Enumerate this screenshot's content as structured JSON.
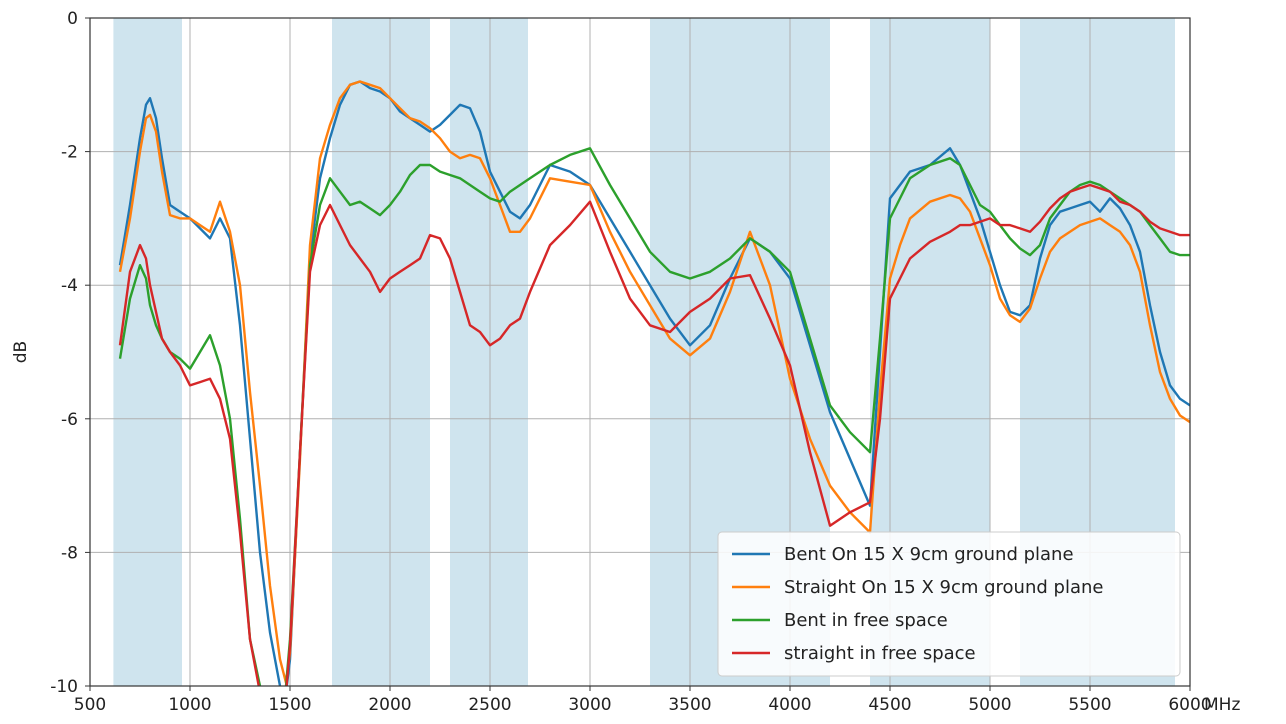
{
  "chart_data": {
    "type": "line",
    "title": "",
    "xlabel": "",
    "ylabel": "dB",
    "x_unit": "MHz",
    "xlim": [
      500,
      6000
    ],
    "ylim": [
      -10,
      0
    ],
    "x_ticks": [
      500,
      1000,
      1500,
      2000,
      2500,
      3000,
      3500,
      4000,
      4500,
      5000,
      5500,
      6000
    ],
    "x_tick_labels": [
      "500",
      "1000",
      "1500",
      "2000",
      "2500",
      "3000",
      "3500",
      "4000",
      "4500",
      "5000",
      "5500",
      "6000"
    ],
    "y_ticks": [
      0,
      -2,
      -4,
      -6,
      -8,
      -10
    ],
    "y_tick_labels": [
      "0",
      "-2",
      "-4",
      "-6",
      "-8",
      "-10"
    ],
    "grid": true,
    "legend_position": "bottom-right",
    "shaded_bands": [
      [
        617,
        960
      ],
      [
        1710,
        2200
      ],
      [
        2300,
        2690
      ],
      [
        3300,
        4200
      ],
      [
        4400,
        5000
      ],
      [
        5150,
        5925
      ]
    ],
    "band_color": "#cfe4ee",
    "series": [
      {
        "name": "Bent On 15 X 9cm ground plane",
        "color": "#1f77b4",
        "x": [
          650,
          700,
          750,
          780,
          800,
          830,
          860,
          900,
          950,
          1000,
          1050,
          1100,
          1150,
          1200,
          1250,
          1300,
          1350,
          1400,
          1450,
          1480,
          1500,
          1550,
          1600,
          1650,
          1700,
          1750,
          1800,
          1850,
          1900,
          1950,
          2000,
          2050,
          2100,
          2150,
          2200,
          2250,
          2300,
          2350,
          2400,
          2450,
          2500,
          2550,
          2600,
          2650,
          2700,
          2800,
          2900,
          3000,
          3100,
          3200,
          3300,
          3400,
          3500,
          3600,
          3700,
          3800,
          3900,
          4000,
          4100,
          4200,
          4300,
          4400,
          4450,
          4500,
          4550,
          4600,
          4700,
          4800,
          4850,
          4900,
          4950,
          5000,
          5050,
          5100,
          5150,
          5200,
          5250,
          5300,
          5350,
          5400,
          5450,
          5500,
          5550,
          5600,
          5650,
          5700,
          5750,
          5800,
          5850,
          5900,
          5950,
          6000
        ],
        "y": [
          -3.7,
          -2.8,
          -1.8,
          -1.3,
          -1.2,
          -1.5,
          -2.1,
          -2.8,
          -2.9,
          -3.0,
          -3.15,
          -3.3,
          -3.0,
          -3.3,
          -4.6,
          -6.3,
          -8.0,
          -9.2,
          -10.0,
          -10.1,
          -9.6,
          -6.5,
          -3.6,
          -2.4,
          -1.8,
          -1.3,
          -1.0,
          -0.95,
          -1.05,
          -1.1,
          -1.2,
          -1.4,
          -1.5,
          -1.6,
          -1.7,
          -1.6,
          -1.45,
          -1.3,
          -1.35,
          -1.7,
          -2.3,
          -2.6,
          -2.9,
          -3.0,
          -2.8,
          -2.2,
          -2.3,
          -2.5,
          -3.0,
          -3.5,
          -4.0,
          -4.5,
          -4.9,
          -4.6,
          -3.9,
          -3.3,
          -3.5,
          -3.9,
          -4.9,
          -5.9,
          -6.6,
          -7.3,
          -5.0,
          -2.7,
          -2.5,
          -2.3,
          -2.2,
          -1.95,
          -2.2,
          -2.6,
          -3.0,
          -3.5,
          -4.0,
          -4.4,
          -4.45,
          -4.3,
          -3.6,
          -3.1,
          -2.9,
          -2.85,
          -2.8,
          -2.75,
          -2.9,
          -2.7,
          -2.85,
          -3.1,
          -3.5,
          -4.3,
          -5.0,
          -5.5,
          -5.7,
          -5.8
        ]
      },
      {
        "name": "Straight On 15 X 9cm ground plane",
        "color": "#ff7f0e",
        "x": [
          650,
          700,
          750,
          780,
          800,
          830,
          860,
          900,
          950,
          1000,
          1050,
          1100,
          1150,
          1200,
          1250,
          1300,
          1350,
          1400,
          1450,
          1480,
          1500,
          1550,
          1600,
          1650,
          1700,
          1750,
          1800,
          1850,
          1900,
          1950,
          2000,
          2050,
          2100,
          2150,
          2200,
          2250,
          2300,
          2350,
          2400,
          2450,
          2500,
          2550,
          2600,
          2650,
          2700,
          2800,
          2900,
          3000,
          3100,
          3200,
          3300,
          3400,
          3500,
          3600,
          3700,
          3800,
          3900,
          4000,
          4100,
          4200,
          4300,
          4400,
          4450,
          4500,
          4550,
          4600,
          4700,
          4800,
          4850,
          4900,
          4950,
          5000,
          5050,
          5100,
          5150,
          5200,
          5250,
          5300,
          5350,
          5400,
          5450,
          5500,
          5550,
          5600,
          5650,
          5700,
          5750,
          5800,
          5850,
          5900,
          5950,
          6000
        ],
        "y": [
          -3.8,
          -3.0,
          -2.0,
          -1.5,
          -1.45,
          -1.7,
          -2.3,
          -2.95,
          -3.0,
          -3.0,
          -3.1,
          -3.2,
          -2.75,
          -3.2,
          -4.0,
          -5.6,
          -7.0,
          -8.5,
          -9.6,
          -9.95,
          -9.5,
          -6.6,
          -3.4,
          -2.1,
          -1.6,
          -1.2,
          -1.0,
          -0.95,
          -1.0,
          -1.05,
          -1.2,
          -1.35,
          -1.5,
          -1.55,
          -1.65,
          -1.8,
          -2.0,
          -2.1,
          -2.05,
          -2.1,
          -2.4,
          -2.8,
          -3.2,
          -3.2,
          -3.0,
          -2.4,
          -2.45,
          -2.5,
          -3.2,
          -3.8,
          -4.3,
          -4.8,
          -5.05,
          -4.8,
          -4.1,
          -3.2,
          -4.0,
          -5.4,
          -6.3,
          -7.0,
          -7.4,
          -7.7,
          -5.6,
          -3.9,
          -3.4,
          -3.0,
          -2.75,
          -2.65,
          -2.7,
          -2.9,
          -3.3,
          -3.7,
          -4.2,
          -4.45,
          -4.55,
          -4.35,
          -3.9,
          -3.5,
          -3.3,
          -3.2,
          -3.1,
          -3.05,
          -3.0,
          -3.1,
          -3.2,
          -3.4,
          -3.8,
          -4.6,
          -5.3,
          -5.7,
          -5.95,
          -6.05
        ]
      },
      {
        "name": "Bent in free space",
        "color": "#2ca02c",
        "x": [
          650,
          700,
          750,
          780,
          800,
          830,
          860,
          900,
          950,
          1000,
          1050,
          1100,
          1150,
          1200,
          1250,
          1300,
          1350,
          1400,
          1450,
          1480,
          1500,
          1550,
          1600,
          1650,
          1700,
          1750,
          1800,
          1850,
          1900,
          1950,
          2000,
          2050,
          2100,
          2150,
          2200,
          2250,
          2300,
          2350,
          2400,
          2450,
          2500,
          2550,
          2600,
          2650,
          2700,
          2800,
          2900,
          3000,
          3100,
          3200,
          3300,
          3400,
          3500,
          3600,
          3700,
          3800,
          3900,
          4000,
          4100,
          4200,
          4300,
          4400,
          4450,
          4500,
          4550,
          4600,
          4700,
          4800,
          4850,
          4900,
          4950,
          5000,
          5050,
          5100,
          5150,
          5200,
          5250,
          5300,
          5350,
          5400,
          5450,
          5500,
          5550,
          5600,
          5650,
          5700,
          5750,
          5800,
          5850,
          5900,
          5950,
          6000
        ],
        "y": [
          -5.1,
          -4.2,
          -3.7,
          -3.9,
          -4.3,
          -4.6,
          -4.8,
          -5.0,
          -5.1,
          -5.25,
          -5.0,
          -4.75,
          -5.2,
          -6.0,
          -7.5,
          -9.3,
          -10.0,
          -10.2,
          -10.1,
          -10.0,
          -9.3,
          -6.5,
          -3.7,
          -2.8,
          -2.4,
          -2.6,
          -2.8,
          -2.75,
          -2.85,
          -2.95,
          -2.8,
          -2.6,
          -2.35,
          -2.2,
          -2.2,
          -2.3,
          -2.35,
          -2.4,
          -2.5,
          -2.6,
          -2.7,
          -2.75,
          -2.6,
          -2.5,
          -2.4,
          -2.2,
          -2.05,
          -1.95,
          -2.5,
          -3.0,
          -3.5,
          -3.8,
          -3.9,
          -3.8,
          -3.6,
          -3.3,
          -3.5,
          -3.8,
          -4.8,
          -5.8,
          -6.2,
          -6.5,
          -4.8,
          -3.0,
          -2.7,
          -2.4,
          -2.2,
          -2.1,
          -2.2,
          -2.5,
          -2.8,
          -2.9,
          -3.1,
          -3.3,
          -3.45,
          -3.55,
          -3.4,
          -3.0,
          -2.8,
          -2.6,
          -2.5,
          -2.45,
          -2.5,
          -2.6,
          -2.7,
          -2.8,
          -2.9,
          -3.1,
          -3.3,
          -3.5,
          -3.55,
          -3.55
        ]
      },
      {
        "name": "straight in free space",
        "color": "#d62728",
        "x": [
          650,
          700,
          750,
          780,
          800,
          830,
          860,
          900,
          950,
          1000,
          1050,
          1100,
          1150,
          1200,
          1250,
          1300,
          1350,
          1400,
          1450,
          1480,
          1500,
          1550,
          1600,
          1650,
          1700,
          1750,
          1800,
          1850,
          1900,
          1950,
          2000,
          2050,
          2100,
          2150,
          2200,
          2250,
          2300,
          2350,
          2400,
          2450,
          2500,
          2550,
          2600,
          2650,
          2700,
          2800,
          2900,
          3000,
          3100,
          3200,
          3300,
          3400,
          3500,
          3600,
          3700,
          3800,
          3900,
          4000,
          4100,
          4200,
          4300,
          4400,
          4450,
          4500,
          4550,
          4600,
          4700,
          4800,
          4850,
          4900,
          4950,
          5000,
          5050,
          5100,
          5150,
          5200,
          5250,
          5300,
          5350,
          5400,
          5450,
          5500,
          5550,
          5600,
          5650,
          5700,
          5750,
          5800,
          5850,
          5900,
          5950,
          6000
        ],
        "y": [
          -4.9,
          -3.8,
          -3.4,
          -3.6,
          -4.0,
          -4.4,
          -4.8,
          -5.0,
          -5.2,
          -5.5,
          -5.45,
          -5.4,
          -5.7,
          -6.3,
          -7.7,
          -9.3,
          -10.1,
          -10.2,
          -10.15,
          -10.1,
          -9.4,
          -6.5,
          -3.8,
          -3.1,
          -2.8,
          -3.1,
          -3.4,
          -3.6,
          -3.8,
          -4.1,
          -3.9,
          -3.8,
          -3.7,
          -3.6,
          -3.25,
          -3.3,
          -3.6,
          -4.1,
          -4.6,
          -4.7,
          -4.9,
          -4.8,
          -4.6,
          -4.5,
          -4.1,
          -3.4,
          -3.1,
          -2.75,
          -3.5,
          -4.2,
          -4.6,
          -4.7,
          -4.4,
          -4.2,
          -3.9,
          -3.85,
          -4.5,
          -5.2,
          -6.5,
          -7.6,
          -7.4,
          -7.25,
          -6.0,
          -4.2,
          -3.9,
          -3.6,
          -3.35,
          -3.2,
          -3.1,
          -3.1,
          -3.05,
          -3.0,
          -3.1,
          -3.1,
          -3.15,
          -3.2,
          -3.05,
          -2.85,
          -2.7,
          -2.6,
          -2.55,
          -2.5,
          -2.55,
          -2.6,
          -2.75,
          -2.8,
          -2.9,
          -3.05,
          -3.15,
          -3.2,
          -3.25,
          -3.25
        ]
      }
    ]
  }
}
